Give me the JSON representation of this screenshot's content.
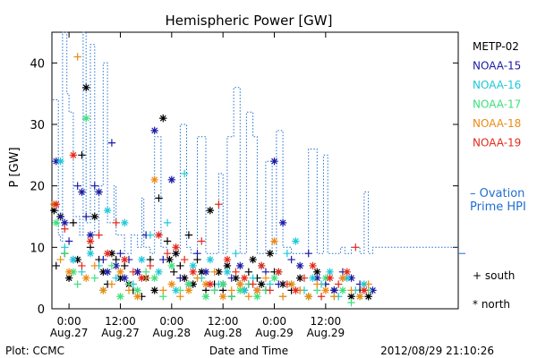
{
  "chart_data": {
    "type": "scatter",
    "title": "Hemispheric Power [GW]",
    "xlabel": "Date and Time",
    "ylabel": "P [GW]",
    "xlim_hours": [
      -4,
      91
    ],
    "ylim": [
      0,
      45
    ],
    "yticks": [
      0,
      10,
      20,
      30,
      40
    ],
    "xticks": [
      {
        "hour": 0,
        "time": "0:00",
        "date": "Aug.27"
      },
      {
        "hour": 12,
        "time": "12:00",
        "date": "Aug.27"
      },
      {
        "hour": 24,
        "time": "0:00",
        "date": "Aug.28"
      },
      {
        "hour": 36,
        "time": "12:00",
        "date": "Aug.28"
      },
      {
        "hour": 48,
        "time": "0:00",
        "date": "Aug.29"
      },
      {
        "hour": 60,
        "time": "12:00",
        "date": "Aug.29"
      }
    ],
    "legend_position": "right",
    "colors": {
      "METP-02": "#000000",
      "NOAA-15": "#1a1aa6",
      "NOAA-16": "#1ec8d8",
      "NOAA-17": "#3ee07a",
      "NOAA-18": "#ee8a14",
      "NOAA-19": "#e22a1c",
      "Ovation": "#1f6fd1"
    },
    "legend": {
      "satellites": [
        "METP-02",
        "NOAA-15",
        "NOAA-16",
        "NOAA-17",
        "NOAA-18",
        "NOAA-19"
      ],
      "ovation_line1": "– Ovation",
      "ovation_line2": "Prime HPI",
      "south_label": "+ south",
      "north_label": "* north"
    },
    "ovation_series": {
      "name": "Ovation Prime HPI",
      "x": [
        -3.8,
        -2.5,
        -2.0,
        -1.5,
        -0.5,
        0.0,
        1.0,
        2.5,
        3.3,
        4.0,
        5.0,
        6.0,
        7.0,
        8.0,
        9.0,
        10.5,
        11.0,
        13.0,
        14.5,
        16.0,
        17.0,
        17.5,
        19.0,
        20.0,
        21.5,
        23.0,
        26.0,
        27.5,
        28.5,
        30.0,
        32.0,
        33.5,
        35.0,
        36.0,
        37.0,
        38.5,
        40.0,
        41.5,
        43.0,
        44.0,
        46.0,
        47.5,
        48.5,
        50.0,
        52.0,
        53.0,
        56.0,
        58.0,
        59.5,
        60.5,
        63.5,
        64.5,
        66.0,
        68.0,
        69.0,
        70.0,
        71.0
      ],
      "y": [
        34,
        12,
        11,
        45,
        35,
        32,
        15,
        12,
        45,
        14,
        43,
        12,
        20,
        40,
        14,
        20,
        12,
        9,
        12,
        10,
        18,
        10,
        9,
        28,
        10,
        9,
        30,
        10,
        9,
        28,
        9,
        9,
        22,
        9,
        28,
        36,
        9,
        32,
        28,
        9,
        24,
        9,
        29,
        10,
        9,
        9,
        26,
        9,
        25,
        9,
        10,
        9,
        10,
        9,
        19,
        9,
        10
      ]
    },
    "series": [
      {
        "name": "METP-02",
        "x": [
          -3.5,
          -3,
          -2,
          -1,
          0,
          1,
          2,
          3,
          4,
          5,
          6,
          7,
          8,
          9,
          10,
          11,
          12,
          13,
          14,
          15,
          16,
          17,
          18,
          19,
          20,
          21,
          22,
          23,
          23.5,
          24.5,
          25,
          26,
          27,
          28,
          29,
          30,
          31,
          32,
          33,
          34,
          35,
          36,
          37,
          38,
          39,
          40,
          41,
          42,
          43,
          44,
          45,
          46,
          47,
          48,
          50,
          52,
          54,
          56,
          58,
          60,
          62,
          64,
          66,
          68,
          70
        ],
        "y": [
          16,
          7,
          15,
          9,
          5,
          14,
          8,
          25,
          36,
          10,
          15,
          8,
          6,
          4,
          9,
          8,
          5,
          7,
          4,
          3,
          6,
          2,
          5,
          8,
          3,
          18,
          31,
          11,
          8,
          6,
          9,
          7,
          5,
          12,
          4,
          8,
          6,
          3,
          16,
          4,
          6,
          3,
          7,
          2,
          5,
          4,
          3,
          6,
          8,
          5,
          4,
          3,
          9,
          6,
          4,
          3,
          5,
          2,
          6,
          4,
          3,
          5,
          2,
          3,
          2
        ]
      },
      {
        "name": "NOAA-15",
        "x": [
          -3,
          -2,
          -1,
          0,
          1,
          2,
          3,
          4,
          5,
          6,
          7,
          8,
          9,
          10,
          11,
          12,
          13,
          14,
          16,
          18,
          20,
          22,
          24,
          26,
          28,
          30,
          32,
          34,
          36,
          38,
          40,
          42,
          44,
          46,
          48,
          49,
          50,
          52,
          54,
          56,
          58,
          60,
          62,
          64,
          66,
          68,
          71
        ],
        "y": [
          24,
          15,
          14,
          11,
          8,
          20,
          19,
          15,
          12,
          20,
          19,
          8,
          6,
          27,
          7,
          9,
          5,
          8,
          6,
          12,
          29,
          8,
          21,
          5,
          4,
          9,
          6,
          3,
          4,
          5,
          7,
          4,
          3,
          6,
          24,
          4,
          14,
          8,
          7,
          9,
          5,
          4,
          3,
          6,
          5,
          4,
          3
        ]
      },
      {
        "name": "NOAA-16",
        "x": [
          -2,
          -1,
          1,
          3,
          5,
          7,
          9,
          11,
          13,
          15,
          17,
          19,
          21,
          23,
          25,
          27,
          29,
          31,
          33,
          35,
          37,
          39,
          41,
          43,
          45,
          47,
          49,
          51,
          53,
          55,
          57,
          59,
          61,
          63,
          65,
          67,
          69
        ],
        "y": [
          24,
          10,
          8,
          6,
          9,
          7,
          16,
          5,
          14,
          4,
          8,
          12,
          6,
          14,
          3,
          22,
          7,
          5,
          8,
          4,
          6,
          9,
          3,
          5,
          7,
          4,
          6,
          9,
          11,
          3,
          5,
          4,
          6,
          2,
          5,
          3,
          4
        ]
      },
      {
        "name": "NOAA-17",
        "x": [
          -3,
          -1,
          1,
          2,
          4,
          6,
          8,
          10,
          12,
          14,
          16,
          18,
          20,
          22,
          24,
          26,
          28,
          30,
          32,
          34,
          36,
          38,
          40,
          42,
          44,
          46,
          48,
          50,
          52,
          54,
          56,
          58,
          60,
          62,
          64,
          66,
          68,
          70
        ],
        "y": [
          14,
          9,
          6,
          4,
          31,
          5,
          3,
          7,
          2,
          4,
          3,
          6,
          5,
          2,
          7,
          3,
          4,
          5,
          2,
          3,
          4,
          2,
          3,
          4,
          2,
          3,
          5,
          2,
          4,
          3,
          2,
          3,
          5,
          2,
          3,
          1,
          2,
          3
        ]
      },
      {
        "name": "NOAA-18",
        "x": [
          -3.5,
          -2,
          0,
          2,
          4,
          6,
          8,
          10,
          12,
          14,
          16,
          18,
          20,
          22,
          24,
          26,
          28,
          30,
          32,
          34,
          36,
          38,
          40,
          42,
          44,
          46,
          48,
          50,
          52,
          54,
          56,
          58,
          60,
          62,
          64,
          66,
          68,
          70
        ],
        "y": [
          17,
          8,
          6,
          41,
          5,
          7,
          3,
          4,
          6,
          3,
          2,
          5,
          21,
          3,
          4,
          2,
          3,
          5,
          4,
          6,
          2,
          3,
          4,
          2,
          3,
          5,
          11,
          2,
          4,
          3,
          2,
          4,
          3,
          2,
          5,
          3,
          2,
          4
        ]
      },
      {
        "name": "NOAA-19",
        "x": [
          -3,
          -1,
          1,
          3,
          5,
          7,
          9,
          11,
          13,
          15,
          17,
          19,
          21,
          23,
          25,
          27,
          29,
          31,
          33,
          35,
          37,
          39,
          41,
          43,
          45,
          47,
          49,
          51,
          53,
          55,
          57,
          59,
          61,
          63,
          65,
          67,
          69
        ],
        "y": [
          17,
          13,
          25,
          7,
          11,
          12,
          9,
          14,
          8,
          6,
          5,
          7,
          12,
          9,
          10,
          8,
          6,
          11,
          4,
          17,
          8,
          6,
          5,
          4,
          7,
          3,
          6,
          4,
          3,
          5,
          7,
          2,
          5,
          4,
          6,
          10,
          3
        ]
      }
    ]
  },
  "footer": {
    "plot_source": "Plot: CCMC",
    "timestamp": "2012/08/29 21:10:26"
  }
}
